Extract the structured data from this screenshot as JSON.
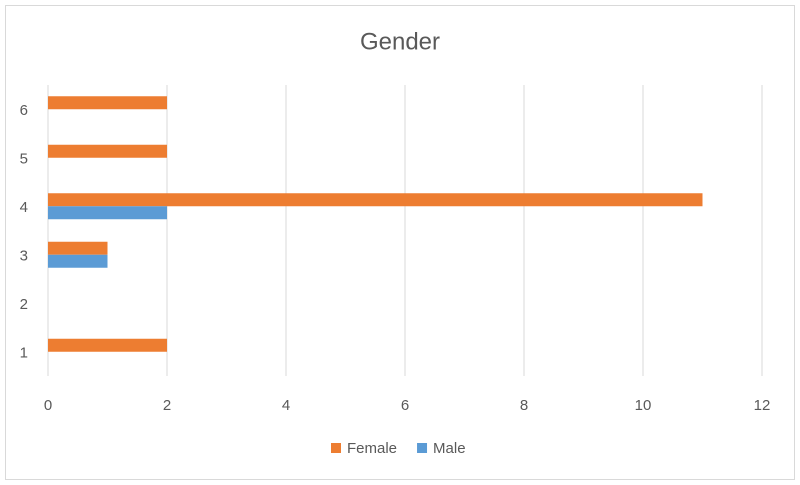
{
  "chart_data": {
    "type": "bar",
    "orientation": "horizontal",
    "title": "Gender",
    "categories": [
      "1",
      "2",
      "3",
      "4",
      "5",
      "6"
    ],
    "series": [
      {
        "name": "Female",
        "color": "#ed7d31",
        "values": [
          2,
          0,
          1,
          11,
          2,
          2
        ]
      },
      {
        "name": "Male",
        "color": "#5b9bd5",
        "values": [
          0,
          0,
          1,
          2,
          0,
          0
        ]
      }
    ],
    "xlim": [
      0,
      12
    ],
    "xticks": [
      0,
      2,
      4,
      6,
      8,
      10,
      12
    ],
    "grid": true,
    "legend": "bottom"
  }
}
